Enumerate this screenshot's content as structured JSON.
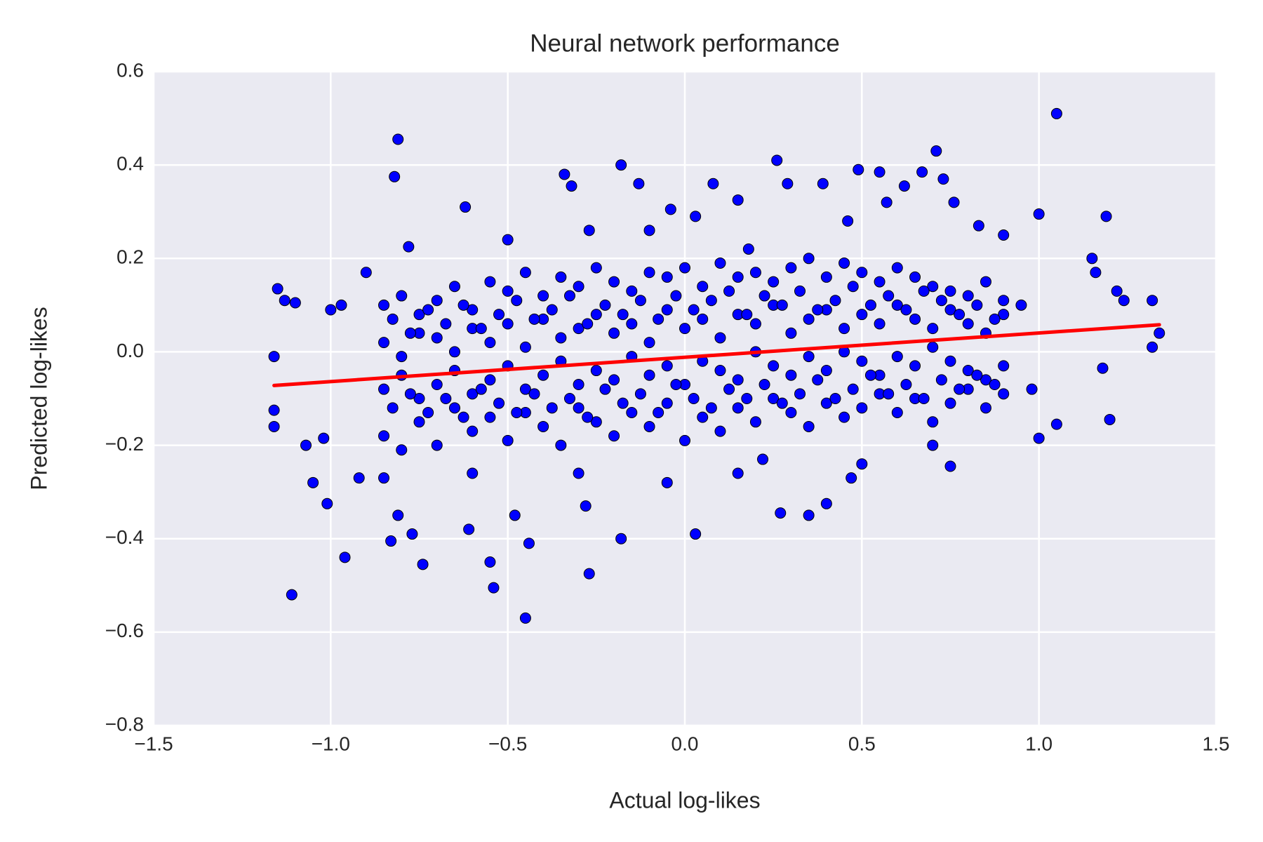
{
  "chart_data": {
    "type": "scatter",
    "title": "Neural network performance",
    "x_label": "Actual log-likes",
    "y_label": "Predicted log-likes",
    "background": "#eaeaf2",
    "grid": true,
    "xlim": [
      -1.5,
      1.5
    ],
    "ylim": [
      -0.8,
      0.6
    ],
    "xticks": [
      {
        "value": -1.5,
        "label": "−1.5"
      },
      {
        "value": -1.0,
        "label": "−1.0"
      },
      {
        "value": -0.5,
        "label": "−0.5"
      },
      {
        "value": 0,
        "label": "0.0"
      },
      {
        "value": 0.5,
        "label": "0.5"
      },
      {
        "value": 1.0,
        "label": "1.0"
      },
      {
        "value": 1.5,
        "label": "1.5"
      }
    ],
    "yticks": [
      {
        "value": -0.8,
        "label": "−0.8"
      },
      {
        "value": -0.6,
        "label": "−0.6"
      },
      {
        "value": -0.4,
        "label": "−0.4"
      },
      {
        "value": -0.2,
        "label": "−0.2"
      },
      {
        "value": 0,
        "label": "0.0"
      },
      {
        "value": 0.2,
        "label": "0.2"
      },
      {
        "value": 0.4,
        "label": "0.4"
      },
      {
        "value": 0.6,
        "label": "0.6"
      }
    ],
    "series": [
      {
        "type": "scatter",
        "color": "#0000ff",
        "x": [
          1.05,
          -0.81,
          0.71,
          0.26,
          -0.18,
          0.49,
          0.55,
          -0.34,
          0.67,
          -0.82,
          0.73,
          0.39,
          0.08,
          -0.32,
          -0.13,
          0.29,
          0.62,
          0.15,
          -0.62,
          -0.04,
          1.19,
          1.0,
          -0.45,
          -1.11,
          -0.54,
          -0.27,
          -0.74,
          -0.55,
          -0.96,
          -0.44,
          -0.83,
          -0.77,
          -0.18,
          0.03,
          -0.81,
          -0.48,
          0.35,
          0.27,
          -1.01,
          0.4,
          -0.28,
          -0.61,
          -1.16,
          -1.16,
          -1.16,
          -1.15,
          -1.13,
          -1.1,
          1.32,
          1.34,
          1.32,
          1.22,
          1.24,
          1.15,
          1.16,
          1.2,
          1.18,
          1.05,
          1.0,
          -0.5,
          -0.27,
          0.46,
          0.57,
          0.76,
          -0.78,
          0.83,
          0.9,
          0.18,
          -0.1,
          0.03,
          -0.3,
          0.15,
          0.5,
          -0.6,
          -0.85,
          0.47,
          -0.05,
          0.22,
          0.7,
          -0.92,
          -1.05,
          -1.07,
          -1.0,
          -0.97,
          -0.9,
          0.95,
          0.98,
          -1.02,
          0.75
        ],
        "values": [
          0.51,
          0.455,
          0.43,
          0.41,
          0.4,
          0.39,
          0.385,
          0.38,
          0.385,
          0.375,
          0.37,
          0.36,
          0.36,
          0.355,
          0.36,
          0.36,
          0.355,
          0.325,
          0.31,
          0.305,
          0.29,
          0.295,
          -0.57,
          -0.52,
          -0.505,
          -0.475,
          -0.455,
          -0.45,
          -0.44,
          -0.41,
          -0.405,
          -0.39,
          -0.4,
          -0.39,
          -0.35,
          -0.35,
          -0.35,
          -0.345,
          -0.325,
          -0.325,
          -0.33,
          -0.38,
          -0.16,
          -0.125,
          -0.01,
          0.135,
          0.11,
          0.105,
          0.11,
          0.04,
          0.01,
          0.13,
          0.11,
          0.2,
          0.17,
          -0.145,
          -0.035,
          -0.155,
          -0.185,
          0.24,
          0.26,
          0.28,
          0.32,
          0.32,
          0.225,
          0.27,
          0.25,
          0.22,
          0.26,
          0.29,
          -0.26,
          -0.26,
          -0.24,
          -0.26,
          -0.27,
          -0.27,
          -0.28,
          -0.23,
          -0.2,
          -0.27,
          -0.28,
          -0.2,
          0.09,
          0.1,
          0.17,
          0.1,
          -0.08,
          -0.185,
          -0.245
        ]
      },
      {
        "type": "scatter",
        "color": "#0000ff",
        "x": [
          -0.85,
          -0.8,
          -0.75,
          -0.7,
          -0.65,
          -0.6,
          -0.55,
          -0.5,
          -0.45,
          -0.4,
          -0.35,
          -0.3,
          -0.25,
          -0.2,
          -0.15,
          -0.1,
          -0.05,
          0,
          0.05,
          0.1,
          0.15,
          0.2,
          0.25,
          0.3,
          0.35,
          0.4,
          0.45,
          0.5,
          0.55,
          0.6,
          0.65,
          0.7,
          0.75,
          0.8,
          0.85,
          0.9
        ],
        "values": [
          0.1,
          0.12,
          0.08,
          0.11,
          0.14,
          0.09,
          0.15,
          0.13,
          0.17,
          0.12,
          0.16,
          0.14,
          0.18,
          0.15,
          0.13,
          0.17,
          0.16,
          0.18,
          0.14,
          0.19,
          0.16,
          0.17,
          0.15,
          0.18,
          0.2,
          0.16,
          0.19,
          0.17,
          0.15,
          0.18,
          0.16,
          0.14,
          0.13,
          0.12,
          0.15,
          0.11
        ]
      },
      {
        "type": "scatter",
        "color": "#0000ff",
        "x": [
          -0.85,
          -0.8,
          -0.75,
          -0.7,
          -0.65,
          -0.6,
          -0.55,
          -0.5,
          -0.45,
          -0.4,
          -0.35,
          -0.3,
          -0.25,
          -0.2,
          -0.15,
          -0.1,
          -0.05,
          0,
          0.05,
          0.1,
          0.15,
          0.2,
          0.25,
          0.3,
          0.35,
          0.4,
          0.45,
          0.5,
          0.55,
          0.6,
          0.65,
          0.7,
          0.75,
          0.8,
          0.85,
          0.9
        ],
        "values": [
          0.02,
          -0.01,
          0.04,
          0.03,
          0.0,
          0.05,
          0.02,
          0.06,
          0.01,
          0.07,
          0.03,
          0.05,
          0.08,
          0.04,
          0.06,
          0.02,
          0.09,
          0.05,
          0.07,
          0.03,
          0.08,
          0.06,
          0.1,
          0.04,
          0.07,
          0.09,
          0.05,
          0.08,
          0.06,
          0.1,
          0.07,
          0.05,
          0.09,
          0.06,
          0.04,
          0.08
        ]
      },
      {
        "type": "scatter",
        "color": "#0000ff",
        "x": [
          -0.85,
          -0.8,
          -0.75,
          -0.7,
          -0.65,
          -0.6,
          -0.55,
          -0.5,
          -0.45,
          -0.4,
          -0.35,
          -0.3,
          -0.25,
          -0.2,
          -0.15,
          -0.1,
          -0.05,
          0,
          0.05,
          0.1,
          0.15,
          0.2,
          0.25,
          0.3,
          0.35,
          0.4,
          0.45,
          0.5,
          0.55,
          0.6,
          0.65,
          0.7,
          0.75,
          0.8,
          0.85,
          0.9
        ],
        "values": [
          -0.08,
          -0.05,
          -0.1,
          -0.07,
          -0.04,
          -0.09,
          -0.06,
          -0.03,
          -0.08,
          -0.05,
          -0.02,
          -0.07,
          -0.04,
          -0.06,
          -0.01,
          -0.05,
          -0.03,
          -0.07,
          -0.02,
          -0.04,
          -0.06,
          0.0,
          -0.03,
          -0.05,
          -0.01,
          -0.04,
          0.0,
          -0.02,
          -0.05,
          -0.01,
          -0.03,
          0.01,
          -0.02,
          -0.04,
          -0.06,
          -0.03
        ]
      },
      {
        "type": "scatter",
        "color": "#0000ff",
        "x": [
          -0.85,
          -0.8,
          -0.75,
          -0.7,
          -0.65,
          -0.6,
          -0.55,
          -0.5,
          -0.45,
          -0.4,
          -0.35,
          -0.3,
          -0.25,
          -0.2,
          -0.15,
          -0.1,
          -0.05,
          0,
          0.05,
          0.1,
          0.15,
          0.2,
          0.25,
          0.3,
          0.35,
          0.4,
          0.45,
          0.5,
          0.55,
          0.6,
          0.65,
          0.7,
          0.75,
          0.8,
          0.85,
          0.9
        ],
        "values": [
          -0.18,
          -0.21,
          -0.15,
          -0.2,
          -0.12,
          -0.17,
          -0.14,
          -0.19,
          -0.13,
          -0.16,
          -0.2,
          -0.12,
          -0.15,
          -0.18,
          -0.13,
          -0.16,
          -0.11,
          -0.19,
          -0.14,
          -0.17,
          -0.12,
          -0.15,
          -0.1,
          -0.13,
          -0.16,
          -0.11,
          -0.14,
          -0.12,
          -0.09,
          -0.13,
          -0.1,
          -0.15,
          -0.11,
          -0.08,
          -0.12,
          -0.09
        ]
      },
      {
        "type": "scatter",
        "color": "#0000ff",
        "x": [
          -0.825,
          -0.775,
          -0.725,
          -0.675,
          -0.625,
          -0.575,
          -0.525,
          -0.475,
          -0.425,
          -0.375,
          -0.325,
          -0.275,
          -0.225,
          -0.175,
          -0.125,
          -0.075,
          -0.025,
          0.025,
          0.075,
          0.125,
          0.175,
          0.225,
          0.275,
          0.325,
          0.375,
          0.425,
          0.475,
          0.525,
          0.575,
          0.625,
          0.675,
          0.725,
          0.775,
          0.825,
          0.875
        ],
        "values": [
          0.07,
          0.04,
          0.09,
          0.06,
          0.1,
          0.05,
          0.08,
          0.11,
          0.07,
          0.09,
          0.12,
          0.06,
          0.1,
          0.08,
          0.11,
          0.07,
          0.12,
          0.09,
          0.11,
          0.13,
          0.08,
          0.12,
          0.1,
          0.13,
          0.09,
          0.11,
          0.14,
          0.1,
          0.12,
          0.09,
          0.13,
          0.11,
          0.08,
          0.1,
          0.07
        ]
      },
      {
        "type": "scatter",
        "color": "#0000ff",
        "x": [
          -0.825,
          -0.775,
          -0.725,
          -0.675,
          -0.625,
          -0.575,
          -0.525,
          -0.475,
          -0.425,
          -0.375,
          -0.325,
          -0.275,
          -0.225,
          -0.175,
          -0.125,
          -0.075,
          -0.025,
          0.025,
          0.075,
          0.125,
          0.175,
          0.225,
          0.275,
          0.325,
          0.375,
          0.425,
          0.475,
          0.525,
          0.575,
          0.625,
          0.675,
          0.725,
          0.775,
          0.825,
          0.875
        ],
        "values": [
          -0.12,
          -0.09,
          -0.13,
          -0.1,
          -0.14,
          -0.08,
          -0.11,
          -0.13,
          -0.09,
          -0.12,
          -0.1,
          -0.14,
          -0.08,
          -0.11,
          -0.09,
          -0.13,
          -0.07,
          -0.1,
          -0.12,
          -0.08,
          -0.1,
          -0.07,
          -0.11,
          -0.09,
          -0.06,
          -0.1,
          -0.08,
          -0.05,
          -0.09,
          -0.07,
          -0.1,
          -0.06,
          -0.08,
          -0.05,
          -0.07
        ]
      },
      {
        "type": "line",
        "color": "#ff0000",
        "x": [
          -1.16,
          1.34
        ],
        "values": [
          -0.072,
          0.058
        ]
      }
    ]
  }
}
